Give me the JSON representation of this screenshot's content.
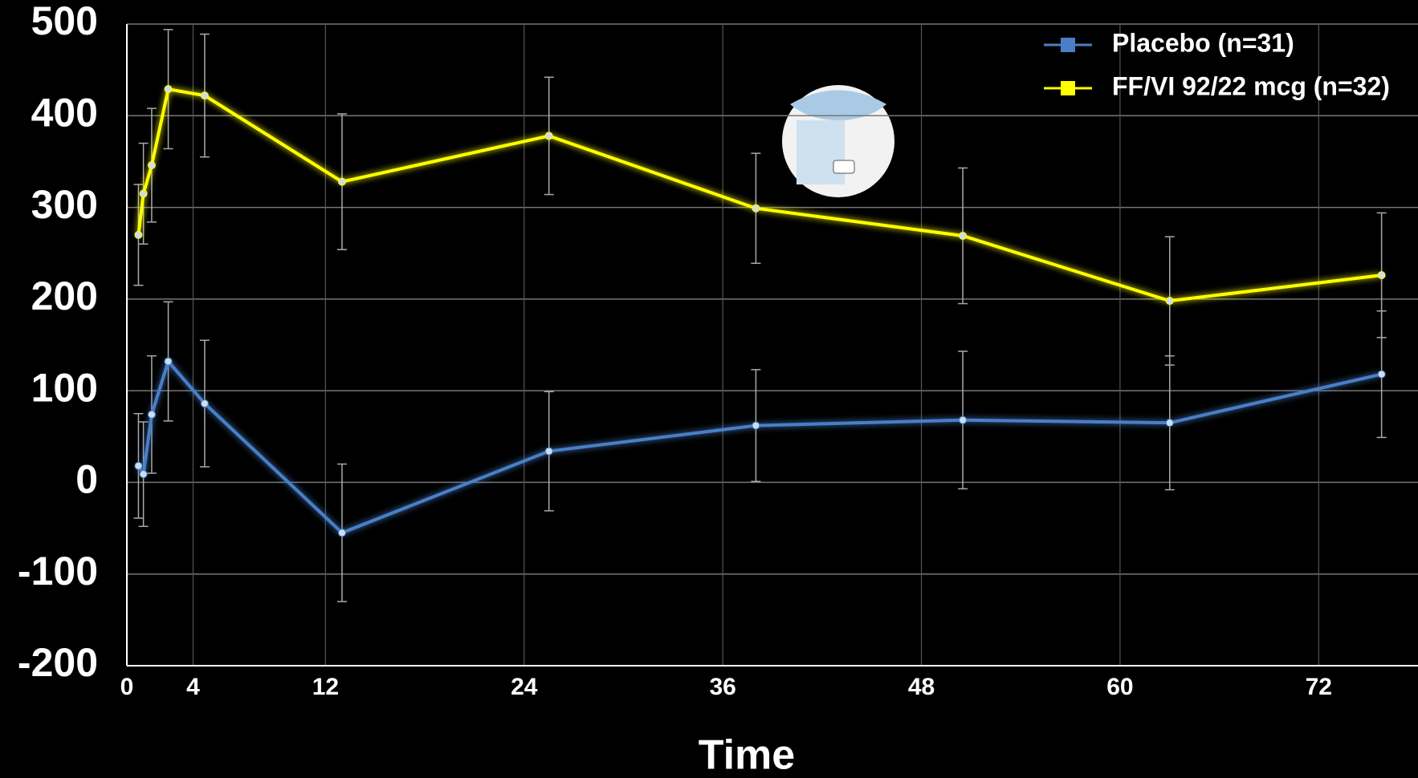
{
  "chart_data": {
    "type": "line",
    "x": [
      0.7,
      1,
      1.5,
      2.5,
      4.7,
      13,
      25.5,
      38,
      50.5,
      63,
      75.8
    ],
    "series": [
      {
        "name": "Placebo (n=31)",
        "color": "#4a7fc8",
        "values": [
          18,
          9,
          74,
          132,
          86,
          -55,
          34,
          62,
          68,
          65,
          118
        ],
        "errors": [
          57,
          57,
          64,
          65,
          69,
          75,
          65,
          61,
          75,
          73,
          69
        ]
      },
      {
        "name": "FF/VI 92/22 mcg (n=32)",
        "color": "#ffff00",
        "values": [
          270,
          315,
          346,
          429,
          422,
          328,
          378,
          299,
          269,
          198,
          226
        ],
        "errors": [
          55,
          55,
          62,
          65,
          67,
          74,
          64,
          60,
          74,
          70,
          68
        ]
      }
    ],
    "xlabel": "Time",
    "xlim": [
      0,
      78
    ],
    "xticks": [
      0,
      4,
      12,
      24,
      36,
      48,
      60,
      72
    ],
    "ylim": [
      -200,
      500
    ],
    "yticks": [
      -200,
      -100,
      0,
      100,
      200,
      300,
      400,
      500
    ],
    "grid": true,
    "legend": "top-right"
  }
}
